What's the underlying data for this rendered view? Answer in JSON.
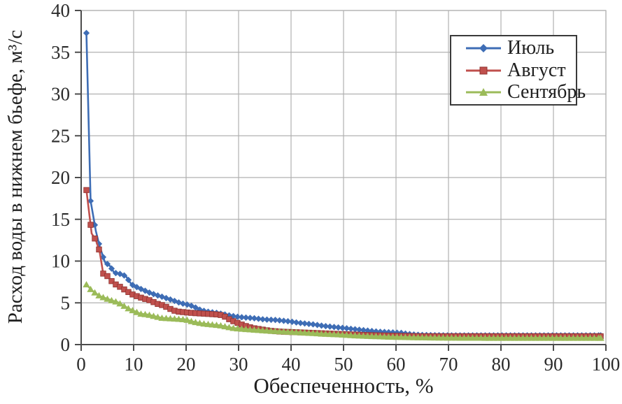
{
  "chart_data": {
    "type": "line",
    "title": "",
    "xlabel": "Обеспеченность, %",
    "ylabel": "Расход воды в нижнем бьефе, м³/с",
    "xlim": [
      0,
      100
    ],
    "ylim": [
      0,
      40
    ],
    "x_ticks": [
      0,
      10,
      20,
      30,
      40,
      50,
      60,
      70,
      80,
      90,
      100
    ],
    "y_ticks": [
      0,
      5,
      10,
      15,
      20,
      25,
      30,
      35,
      40
    ],
    "grid": true,
    "legend_position": "top-right",
    "marker_step_pct": 0.8,
    "colors": {
      "grid": "#b0b0b0",
      "axis": "#4d4d4d",
      "tick_text": "#2b2b2b",
      "legend_border": "#3a3a3a"
    },
    "series": [
      {
        "name": "Июль",
        "color": "#3e6db5",
        "marker": "diamond",
        "points": [
          [
            1,
            37.3
          ],
          [
            1.8,
            17.2
          ],
          [
            2.8,
            13.6
          ],
          [
            3.5,
            11.8
          ],
          [
            4.5,
            9.9
          ],
          [
            5.5,
            9.4
          ],
          [
            6.3,
            8.6
          ],
          [
            7.5,
            8.45
          ],
          [
            8.5,
            8.2
          ],
          [
            9.6,
            7.2
          ],
          [
            10.7,
            6.85
          ],
          [
            11.8,
            6.55
          ],
          [
            12.9,
            6.25
          ],
          [
            14.2,
            5.95
          ],
          [
            15.3,
            5.75
          ],
          [
            16.5,
            5.5
          ],
          [
            17.5,
            5.3
          ],
          [
            18.3,
            5.1
          ],
          [
            19.4,
            4.9
          ],
          [
            20.5,
            4.75
          ],
          [
            21.5,
            4.55
          ],
          [
            22.3,
            4.25
          ],
          [
            23.3,
            4.05
          ],
          [
            24.5,
            3.9
          ],
          [
            25.8,
            3.8
          ],
          [
            27,
            3.65
          ],
          [
            28.2,
            3.5
          ],
          [
            29.5,
            3.35
          ],
          [
            31,
            3.25
          ],
          [
            33,
            3.15
          ],
          [
            35,
            3.0
          ],
          [
            37,
            2.95
          ],
          [
            38.5,
            2.85
          ],
          [
            40,
            2.75
          ],
          [
            41.5,
            2.6
          ],
          [
            43,
            2.5
          ],
          [
            44.5,
            2.4
          ],
          [
            46,
            2.25
          ],
          [
            47.5,
            2.15
          ],
          [
            49,
            2.05
          ],
          [
            50.5,
            1.95
          ],
          [
            52,
            1.85
          ],
          [
            53.5,
            1.75
          ],
          [
            55,
            1.65
          ],
          [
            56.5,
            1.55
          ],
          [
            58,
            1.5
          ],
          [
            59.5,
            1.45
          ],
          [
            61,
            1.4
          ],
          [
            62,
            1.3
          ],
          [
            63.5,
            1.2
          ],
          [
            65,
            1.15
          ],
          [
            70,
            1.1
          ],
          [
            80,
            1.1
          ],
          [
            90,
            1.1
          ],
          [
            99,
            1.1
          ]
        ]
      },
      {
        "name": "Август",
        "color": "#c0504d",
        "marker": "square",
        "points": [
          [
            1,
            18.5
          ],
          [
            2,
            13.3
          ],
          [
            2.8,
            12.5
          ],
          [
            3.5,
            11.2
          ],
          [
            4.2,
            8.5
          ],
          [
            5,
            8.2
          ],
          [
            5.8,
            7.6
          ],
          [
            6.6,
            7.2
          ],
          [
            7.6,
            6.85
          ],
          [
            8.7,
            6.4
          ],
          [
            9.8,
            6.0
          ],
          [
            11,
            5.7
          ],
          [
            12,
            5.5
          ],
          [
            13.1,
            5.3
          ],
          [
            14.4,
            4.9
          ],
          [
            15.6,
            4.7
          ],
          [
            16.6,
            4.4
          ],
          [
            17.5,
            4.1
          ],
          [
            18.5,
            3.95
          ],
          [
            20,
            3.85
          ],
          [
            22,
            3.75
          ],
          [
            24,
            3.68
          ],
          [
            26,
            3.6
          ],
          [
            27,
            3.5
          ],
          [
            28,
            3.1
          ],
          [
            29,
            2.8
          ],
          [
            30,
            2.55
          ],
          [
            31,
            2.3
          ],
          [
            32,
            2.1
          ],
          [
            33,
            1.95
          ],
          [
            34,
            1.85
          ],
          [
            35,
            1.75
          ],
          [
            36,
            1.65
          ],
          [
            38,
            1.55
          ],
          [
            40,
            1.5
          ],
          [
            42,
            1.45
          ],
          [
            44,
            1.4
          ],
          [
            46,
            1.35
          ],
          [
            48,
            1.3
          ],
          [
            50,
            1.25
          ],
          [
            52,
            1.2
          ],
          [
            54,
            1.15
          ],
          [
            57,
            1.1
          ],
          [
            60,
            1.05
          ],
          [
            65,
            1.0
          ],
          [
            80,
            1.0
          ],
          [
            99,
            1.0
          ]
        ]
      },
      {
        "name": "Сентябрь",
        "color": "#9bbb59",
        "marker": "triangle",
        "points": [
          [
            1,
            7.2
          ],
          [
            2,
            6.5
          ],
          [
            3,
            6.05
          ],
          [
            3.6,
            5.8
          ],
          [
            4.7,
            5.55
          ],
          [
            5.8,
            5.3
          ],
          [
            6.9,
            5.1
          ],
          [
            8,
            4.7
          ],
          [
            9.1,
            4.3
          ],
          [
            10.2,
            4.0
          ],
          [
            11.3,
            3.7
          ],
          [
            12.7,
            3.6
          ],
          [
            14,
            3.4
          ],
          [
            15.3,
            3.2
          ],
          [
            16.6,
            3.15
          ],
          [
            18,
            3.1
          ],
          [
            20,
            3.0
          ],
          [
            21,
            2.8
          ],
          [
            22,
            2.65
          ],
          [
            23.5,
            2.5
          ],
          [
            25,
            2.4
          ],
          [
            26.5,
            2.3
          ],
          [
            28,
            2.1
          ],
          [
            29,
            1.98
          ],
          [
            30,
            1.92
          ],
          [
            32,
            1.82
          ],
          [
            34,
            1.73
          ],
          [
            36,
            1.65
          ],
          [
            38,
            1.58
          ],
          [
            40,
            1.52
          ],
          [
            42,
            1.45
          ],
          [
            44,
            1.38
          ],
          [
            46,
            1.3
          ],
          [
            48,
            1.25
          ],
          [
            50,
            1.18
          ],
          [
            52,
            1.1
          ],
          [
            54,
            1.05
          ],
          [
            56,
            1.0
          ],
          [
            58,
            0.95
          ],
          [
            60,
            0.92
          ],
          [
            63,
            0.88
          ],
          [
            66,
            0.85
          ],
          [
            70,
            0.82
          ],
          [
            80,
            0.8
          ],
          [
            90,
            0.8
          ],
          [
            99,
            0.8
          ]
        ]
      }
    ]
  }
}
